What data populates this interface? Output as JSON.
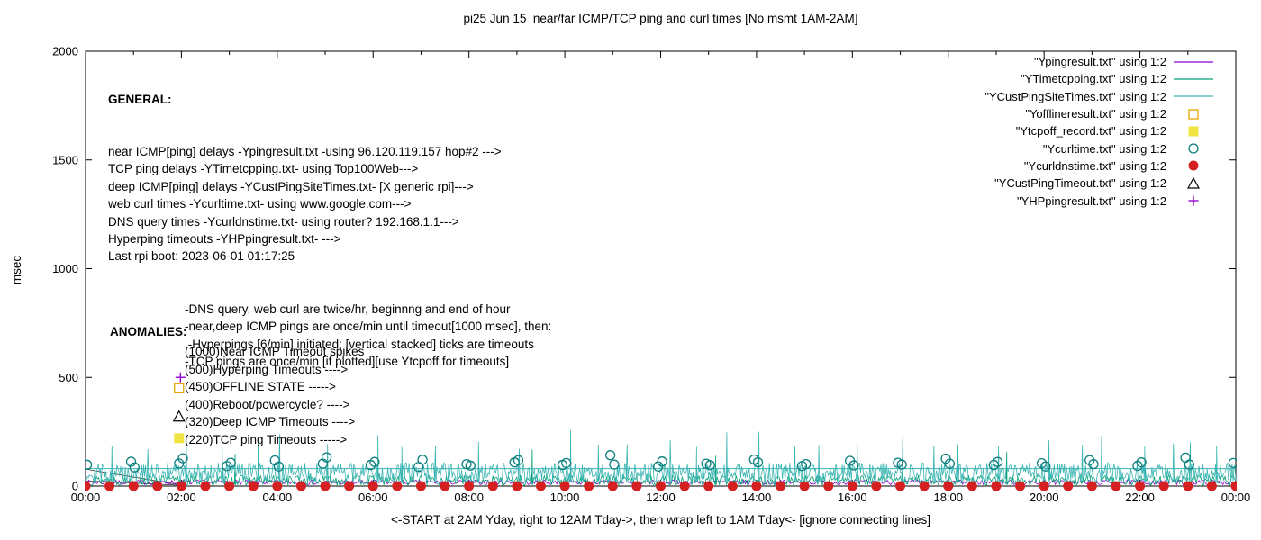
{
  "chart_data": {
    "type": "line",
    "title": "pi25 Jun 15  near/far ICMP/TCP ping and curl times [No msmt 1AM-2AM]",
    "xlabel": "<-START at 2AM Yday, right to 12AM Tday->, then wrap left to 1AM Tday<- [ignore connecting lines]",
    "ylabel": "msec",
    "xlim_hours": [
      0,
      24
    ],
    "ylim": [
      0,
      2000
    ],
    "x_tick_labels": [
      "00:00",
      "02:00",
      "04:00",
      "06:00",
      "08:00",
      "10:00",
      "12:00",
      "14:00",
      "16:00",
      "18:00",
      "20:00",
      "22:00",
      "00:00"
    ],
    "y_tick_values": [
      0,
      500,
      1000,
      1500,
      2000
    ],
    "y_tick_labels": [
      "0",
      "500",
      "1000",
      "1500",
      "2000"
    ],
    "grid": false,
    "legend_position": "top-right",
    "legend": [
      {
        "label": "\"Ypingresult.txt\" using 1:2",
        "marker": "line",
        "color": "#9400d3"
      },
      {
        "label": "\"YTimetcpping.txt\" using 1:2",
        "marker": "line",
        "color": "#009e73"
      },
      {
        "label": "\"YCustPingSiteTimes.txt\" using 1:2",
        "marker": "line",
        "color": "#3ab5b2"
      },
      {
        "label": "\"Yofflineresult.txt\" using 1:2",
        "marker": "square-open",
        "color": "#e6a400"
      },
      {
        "label": "\"Ytcpoff_record.txt\" using 1:2",
        "marker": "square-filled",
        "color": "#f0e442"
      },
      {
        "label": "\"Ycurltime.txt\" using 1:2",
        "marker": "circle-open",
        "color": "#0e7f7f"
      },
      {
        "label": "\"Ycurldnstime.txt\" using 1:2",
        "marker": "circle-filled",
        "color": "#d42020"
      },
      {
        "label": "\"YCustPingTimeout.txt\" using 1:2",
        "marker": "triangle-open",
        "color": "#000000"
      },
      {
        "label": "\"YHPpingresult.txt\" using 1:2",
        "marker": "plus",
        "color": "#9400d3"
      }
    ],
    "series": [
      {
        "name": "connecting-lines",
        "type": "connectors",
        "color": "#1a1a1a",
        "lines": [
          [
            [
              0,
              78
            ],
            [
              2.05,
              3
            ]
          ],
          [
            [
              0,
              24
            ],
            [
              2.05,
              3
            ]
          ]
        ]
      },
      {
        "name": "Ypingresult",
        "type": "noise-line",
        "color": "#9400d3",
        "seed": 7,
        "points_per_hour": 30,
        "base": 6,
        "amp": 22,
        "spikes": []
      },
      {
        "name": "YTimetcpping",
        "type": "noise-line",
        "color": "#009e73",
        "seed": 13,
        "points_per_hour": 40,
        "base": 3,
        "amp": 46,
        "spikes": [
          [
            3.12,
            148
          ],
          [
            9.32,
            168
          ],
          [
            13.15,
            140
          ],
          [
            19.22,
            158
          ]
        ]
      },
      {
        "name": "YCustPingSiteTimes",
        "type": "noise-line",
        "color": "#3ab5b2",
        "seed": 29,
        "points_per_hour": 52,
        "base": 15,
        "amp": 92,
        "spikes": [
          [
            0.55,
            185
          ],
          [
            1.3,
            170
          ],
          [
            2.1,
            255
          ],
          [
            2.85,
            190
          ],
          [
            3.6,
            200
          ],
          [
            4.05,
            238
          ],
          [
            5.05,
            192
          ],
          [
            6.1,
            235
          ],
          [
            6.6,
            180
          ],
          [
            7.3,
            182
          ],
          [
            8.2,
            205
          ],
          [
            9.05,
            172
          ],
          [
            10.12,
            258
          ],
          [
            10.7,
            190
          ],
          [
            11.3,
            192
          ],
          [
            12.2,
            212
          ],
          [
            12.75,
            180
          ],
          [
            13.38,
            248
          ],
          [
            14.05,
            250
          ],
          [
            14.8,
            185
          ],
          [
            15.3,
            188
          ],
          [
            16.1,
            202
          ],
          [
            17.05,
            228
          ],
          [
            17.7,
            185
          ],
          [
            18.2,
            192
          ],
          [
            19.05,
            182
          ],
          [
            20.1,
            212
          ],
          [
            20.8,
            190
          ],
          [
            21.2,
            232
          ],
          [
            22.1,
            182
          ],
          [
            22.7,
            195
          ],
          [
            23.05,
            202
          ],
          [
            23.6,
            185
          ]
        ]
      },
      {
        "name": "YCustPingSiteTimes-baseline",
        "type": "hline",
        "color": "#3ab5b2",
        "value": 80
      },
      {
        "name": "Ycurltime",
        "type": "markers",
        "marker": "circle-open",
        "color": "#0e7f7f",
        "points": [
          [
            0.03,
            98
          ],
          [
            0.95,
            112
          ],
          [
            1.02,
            86
          ],
          [
            1.95,
            104
          ],
          [
            2.03,
            128
          ],
          [
            2.95,
            92
          ],
          [
            3.03,
            107
          ],
          [
            3.95,
            118
          ],
          [
            4.03,
            90
          ],
          [
            4.95,
            103
          ],
          [
            5.03,
            132
          ],
          [
            5.95,
            97
          ],
          [
            6.03,
            111
          ],
          [
            6.95,
            88
          ],
          [
            7.03,
            121
          ],
          [
            7.95,
            101
          ],
          [
            8.03,
            94
          ],
          [
            8.95,
            109
          ],
          [
            9.03,
            119
          ],
          [
            9.95,
            97
          ],
          [
            10.03,
            106
          ],
          [
            10.95,
            142
          ],
          [
            11.03,
            99
          ],
          [
            11.95,
            90
          ],
          [
            12.03,
            113
          ],
          [
            12.95,
            103
          ],
          [
            13.03,
            96
          ],
          [
            13.95,
            122
          ],
          [
            14.03,
            109
          ],
          [
            14.95,
            92
          ],
          [
            15.03,
            101
          ],
          [
            15.95,
            116
          ],
          [
            16.03,
            95
          ],
          [
            16.95,
            107
          ],
          [
            17.03,
            99
          ],
          [
            17.95,
            126
          ],
          [
            18.03,
            103
          ],
          [
            18.95,
            97
          ],
          [
            19.03,
            111
          ],
          [
            19.95,
            105
          ],
          [
            20.03,
            90
          ],
          [
            20.95,
            119
          ],
          [
            21.03,
            101
          ],
          [
            21.95,
            93
          ],
          [
            22.03,
            109
          ],
          [
            22.95,
            131
          ],
          [
            23.03,
            99
          ],
          [
            23.95,
            106
          ]
        ]
      },
      {
        "name": "Ycurldnstime",
        "type": "markers",
        "marker": "circle-filled",
        "color": "#d42020",
        "value": 0,
        "times": [
          0,
          0.5,
          1,
          1.5,
          2,
          2.5,
          3,
          3.5,
          4,
          4.5,
          5,
          5.5,
          6,
          6.5,
          7,
          7.5,
          8,
          8.5,
          9,
          9.5,
          10,
          10.5,
          11,
          11.5,
          12,
          12.5,
          13,
          13.5,
          14,
          14.5,
          15,
          15.5,
          16,
          16.5,
          17,
          17.5,
          18,
          18.5,
          19,
          19.5,
          20,
          20.5,
          21,
          21.5,
          22,
          22.5,
          23,
          23.5,
          24
        ]
      },
      {
        "name": "Yofflineresult",
        "type": "markers",
        "marker": "square-open",
        "color": "#e6a400",
        "points": [
          [
            1.95,
            450
          ]
        ]
      },
      {
        "name": "Ytcpoff_record",
        "type": "markers",
        "marker": "square-filled",
        "color": "#f0e442",
        "points": [
          [
            1.95,
            220
          ]
        ]
      },
      {
        "name": "YCustPingTimeout",
        "type": "markers",
        "marker": "triangle-open",
        "color": "#000000",
        "points": [
          [
            1.95,
            320
          ]
        ]
      },
      {
        "name": "YHPpingresult",
        "type": "markers",
        "marker": "plus",
        "color": "#9400d3",
        "points": [
          [
            1.98,
            500
          ]
        ]
      }
    ],
    "annotations": {
      "general": {
        "heading": "GENERAL:",
        "lines": [
          "near ICMP[ping] delays -Ypingresult.txt -using 96.120.119.157 hop#2 --->",
          "TCP ping delays -YTimetcpping.txt- using Top100Web--->",
          "deep ICMP[ping] delays -YCustPingSiteTimes.txt- [X generic rpi]--->",
          "web curl times -Ycurltime.txt- using www.google.com--->",
          "DNS query times -Ycurldnstime.txt- using router? 192.168.1.1--->",
          "Hyperping timeouts -YHPpingresult.txt- --->",
          "Last rpi boot: 2023-06-01 01:17:25"
        ],
        "notes": [
          "-DNS query, web curl are twice/hr, beginnng and end of hour",
          "-near,deep ICMP pings are once/min until timeout[1000 msec], then:",
          " -Hyperpings [6/min] initiated; [vertical stacked] ticks are timeouts",
          "-TCP pings are once/min [if plotted][use Ytcpoff for timeouts]"
        ]
      },
      "anomalies": {
        "heading": "ANOMALIES:",
        "items": [
          "(1000)Near ICMP Timeout spikes",
          "(500)Hyperping Timeouts ---->",
          "(450)OFFLINE STATE ----->",
          "(400)Reboot/powercycle? ---->",
          "(320)Deep ICMP Timeouts ---->",
          "(220)TCP ping Timeouts ----->"
        ]
      }
    }
  }
}
